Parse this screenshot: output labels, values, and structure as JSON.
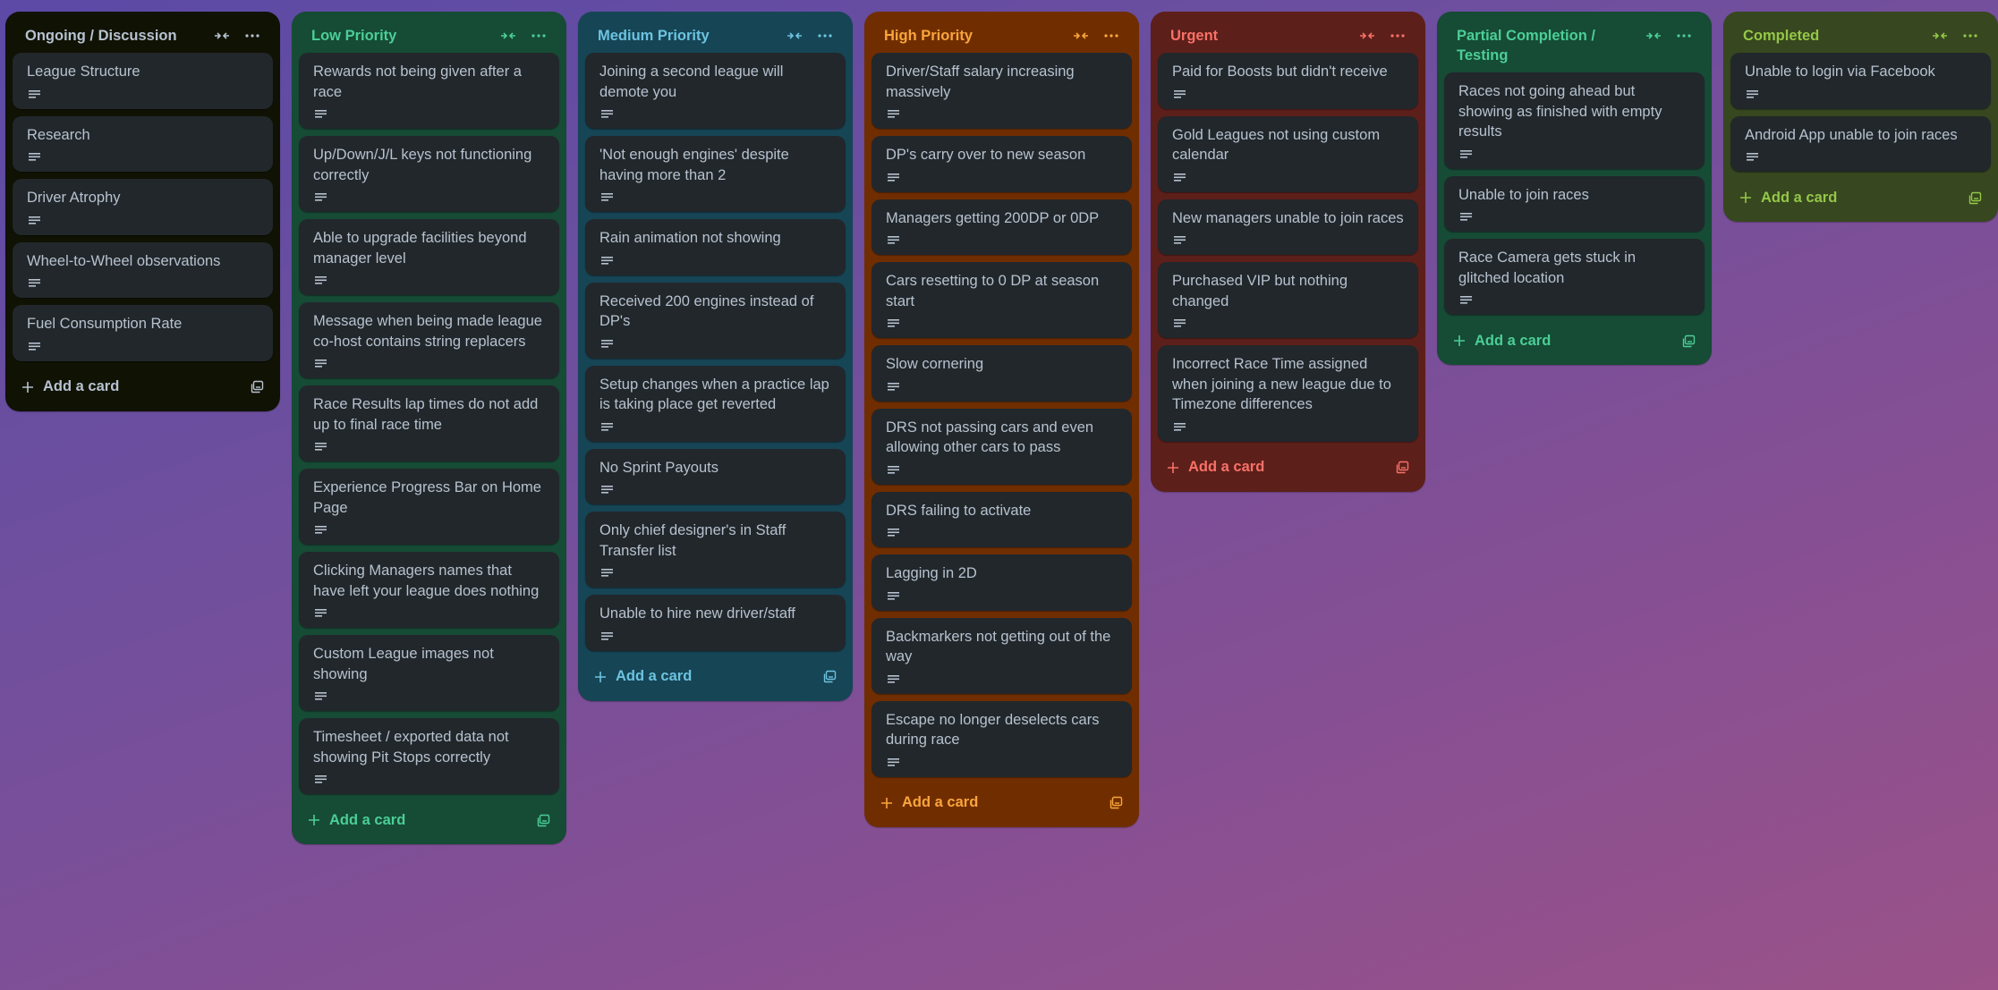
{
  "board": {
    "lists": [
      {
        "title": "Ongoing / Discussion",
        "theme": "dark",
        "add_label": "Add a card",
        "cards": [
          {
            "title": "League Structure"
          },
          {
            "title": "Research"
          },
          {
            "title": "Driver Atrophy"
          },
          {
            "title": "Wheel-to-Wheel observations"
          },
          {
            "title": "Fuel Consumption Rate"
          }
        ]
      },
      {
        "title": "Low Priority",
        "theme": "green",
        "add_label": "Add a card",
        "cards": [
          {
            "title": "Rewards not being given after a race"
          },
          {
            "title": "Up/Down/J/L keys not functioning correctly"
          },
          {
            "title": "Able to upgrade facilities beyond manager level"
          },
          {
            "title": "Message when being made league co-host contains string replacers"
          },
          {
            "title": "Race Results lap times do not add up to final race time"
          },
          {
            "title": "Experience Progress Bar on Home Page"
          },
          {
            "title": "Clicking Managers names that have left your league does nothing"
          },
          {
            "title": "Custom League images not showing"
          },
          {
            "title": "Timesheet / exported data not showing Pit Stops correctly"
          }
        ]
      },
      {
        "title": "Medium Priority",
        "theme": "blue",
        "add_label": "Add a card",
        "cards": [
          {
            "title": "Joining a second league will demote you"
          },
          {
            "title": "'Not enough engines' despite having more than 2"
          },
          {
            "title": "Rain animation not showing"
          },
          {
            "title": "Received 200 engines instead of DP's"
          },
          {
            "title": "Setup changes when a practice lap is taking place get reverted"
          },
          {
            "title": "No Sprint Payouts"
          },
          {
            "title": "Only chief designer's in Staff Transfer list"
          },
          {
            "title": "Unable to hire new driver/staff"
          }
        ]
      },
      {
        "title": "High Priority",
        "theme": "orange",
        "add_label": "Add a card",
        "cards": [
          {
            "title": "Driver/Staff salary increasing massively"
          },
          {
            "title": "DP's carry over to new season"
          },
          {
            "title": "Managers getting 200DP or 0DP"
          },
          {
            "title": "Cars resetting to 0 DP at season start"
          },
          {
            "title": "Slow cornering"
          },
          {
            "title": "DRS not passing cars and even allowing other cars to pass"
          },
          {
            "title": "DRS failing to activate"
          },
          {
            "title": "Lagging in 2D"
          },
          {
            "title": "Backmarkers not getting out of the way"
          },
          {
            "title": "Escape no longer deselects cars during race"
          }
        ]
      },
      {
        "title": "Urgent",
        "theme": "red",
        "add_label": "Add a card",
        "cards": [
          {
            "title": "Paid for Boosts but didn't receive"
          },
          {
            "title": "Gold Leagues not using custom calendar"
          },
          {
            "title": "New managers unable to join races"
          },
          {
            "title": "Purchased VIP but nothing changed"
          },
          {
            "title": "Incorrect Race Time assigned when joining a new league due to Timezone differences"
          }
        ]
      },
      {
        "title": "Partial Completion / Testing",
        "theme": "green",
        "add_label": "Add a card",
        "cards": [
          {
            "title": "Races not going ahead but showing as finished with empty results"
          },
          {
            "title": "Unable to join races"
          },
          {
            "title": "Race Camera gets stuck in glitched location"
          }
        ]
      },
      {
        "title": "Completed",
        "theme": "lime",
        "add_label": "Add a card",
        "cards": [
          {
            "title": "Unable to login via Facebook"
          },
          {
            "title": "Android App unable to join races"
          }
        ]
      }
    ]
  },
  "icons": {
    "collapse": "collapse-list-icon",
    "menu": "more-options-icon",
    "description": "description-icon",
    "add": "plus-icon",
    "template": "card-template-icon"
  }
}
